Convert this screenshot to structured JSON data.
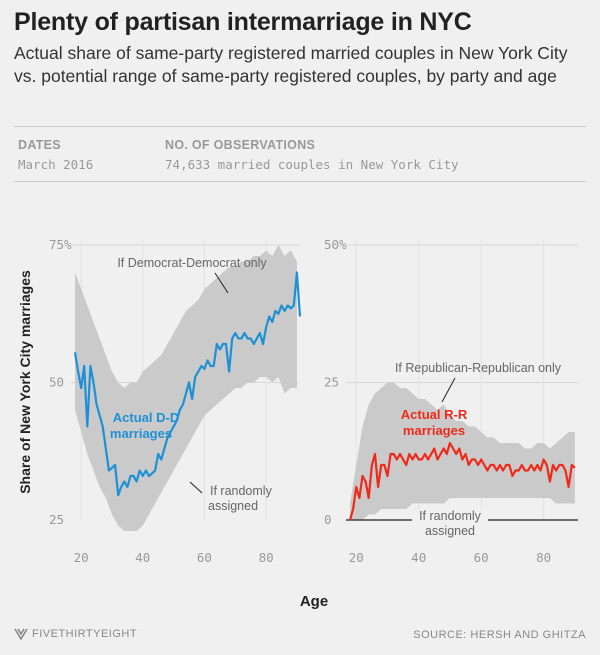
{
  "header": {
    "title": "Plenty of partisan intermarriage in NYC",
    "subtitle": "Actual share of same-party registered married couples in New York City vs. potential range of same-party registered couples, by party and age"
  },
  "meta": {
    "dates_label": "DATES",
    "dates_value": "March 2016",
    "obs_label": "NO. OF OBSERVATIONS",
    "obs_value": "74,633 married couples in New York City"
  },
  "footer": {
    "logo": "FIVETHIRTYEIGHT",
    "source": "SOURCE: HERSH AND GHITZA"
  },
  "colors": {
    "dem": "#1e90d6",
    "rep": "#ee2a1b",
    "band": "#cacaca",
    "background": "#f0f0f0"
  },
  "chart_data": [
    {
      "type": "line",
      "panel": "Democrats",
      "ylabel": "Share of New York City marriages",
      "xlabel": "Age",
      "xlim": [
        18,
        91
      ],
      "ylim": [
        25,
        75
      ],
      "xticks": [
        20,
        40,
        60,
        80
      ],
      "yticks": [
        25,
        50,
        75
      ],
      "ytick_labels": [
        "25",
        "50",
        "75%"
      ],
      "band": {
        "x": [
          18,
          20,
          22,
          24,
          26,
          28,
          30,
          32,
          34,
          36,
          38,
          40,
          42,
          44,
          46,
          48,
          50,
          52,
          54,
          56,
          58,
          60,
          62,
          64,
          66,
          68,
          70,
          72,
          74,
          76,
          78,
          80,
          82,
          84,
          86,
          88,
          90
        ],
        "upper": [
          70,
          67,
          64,
          61,
          58,
          55,
          52,
          50,
          49,
          50,
          50,
          52,
          53,
          54,
          55,
          57,
          59,
          61,
          63,
          64,
          65,
          67,
          68,
          69,
          70,
          71,
          71,
          72,
          72,
          73,
          73,
          74,
          73,
          75,
          73,
          74,
          72
        ],
        "lower": [
          45,
          41,
          37,
          34,
          31,
          29,
          26,
          24,
          23,
          23,
          23,
          24,
          26,
          28,
          30,
          32,
          34,
          36,
          38,
          40,
          42,
          44,
          45,
          46,
          47,
          48,
          49,
          49,
          50,
          50,
          51,
          51,
          50,
          51,
          48,
          49,
          49
        ]
      },
      "series": [
        {
          "name": "Actual D-D marriages",
          "x": [
            18,
            19,
            20,
            21,
            22,
            23,
            24,
            25,
            26,
            27,
            28,
            29,
            30,
            31,
            32,
            33,
            34,
            35,
            36,
            37,
            38,
            39,
            40,
            41,
            42,
            43,
            44,
            45,
            46,
            47,
            48,
            49,
            50,
            51,
            52,
            53,
            54,
            55,
            56,
            57,
            58,
            59,
            60,
            61,
            62,
            63,
            64,
            65,
            66,
            67,
            68,
            69,
            70,
            71,
            72,
            73,
            74,
            75,
            76,
            77,
            78,
            79,
            80,
            81,
            82,
            83,
            84,
            85,
            86,
            87,
            88,
            89,
            90,
            91
          ],
          "values": [
            55.5,
            52,
            49,
            53,
            42,
            53,
            50,
            46,
            44,
            42,
            38,
            34,
            34.5,
            35,
            29.5,
            31,
            32,
            31,
            33,
            33,
            32,
            34,
            33,
            34,
            33,
            33.5,
            34,
            37,
            36,
            38,
            40,
            41,
            42,
            43,
            45,
            46,
            48,
            50,
            47,
            51,
            52,
            53,
            52.5,
            54,
            53,
            53,
            57,
            56,
            57,
            57,
            52,
            58,
            59,
            58,
            58,
            59,
            58,
            58,
            57,
            58,
            59,
            57,
            60,
            62,
            61,
            63,
            62.5,
            64,
            63,
            64,
            63.5,
            64,
            70,
            62
          ]
        }
      ],
      "annotations": [
        "If Democrat-Democrat only",
        "If randomly assigned"
      ]
    },
    {
      "type": "line",
      "panel": "Republicans",
      "xlabel": "Age",
      "xlim": [
        18,
        91
      ],
      "ylim": [
        0,
        50
      ],
      "xticks": [
        20,
        40,
        60,
        80
      ],
      "yticks": [
        0,
        25,
        50
      ],
      "ytick_labels": [
        "0",
        "25",
        "50%"
      ],
      "band": {
        "x": [
          18,
          20,
          22,
          24,
          26,
          28,
          30,
          32,
          34,
          36,
          38,
          40,
          42,
          44,
          46,
          48,
          50,
          52,
          54,
          56,
          58,
          60,
          62,
          64,
          66,
          68,
          70,
          72,
          74,
          76,
          78,
          80,
          82,
          84,
          86,
          88,
          90
        ],
        "upper": [
          3,
          10,
          17,
          21,
          23,
          24,
          25,
          25,
          24,
          24,
          23,
          22,
          22,
          21,
          20,
          21,
          19,
          18,
          18,
          17,
          17,
          16,
          15,
          15,
          14,
          14,
          14,
          14,
          13,
          13,
          14,
          14,
          13,
          14,
          15,
          16,
          16
        ],
        "lower": [
          0,
          0,
          0,
          1,
          1,
          2,
          2,
          2,
          2,
          2,
          3,
          3,
          3,
          3,
          3,
          3,
          4,
          4,
          4,
          4,
          4,
          4,
          4,
          4,
          4,
          4,
          4,
          4,
          4,
          4,
          4,
          4,
          4,
          3,
          3,
          3,
          3
        ]
      },
      "series": [
        {
          "name": "Actual R-R marriages",
          "x": [
            18,
            19,
            20,
            21,
            22,
            23,
            24,
            25,
            26,
            27,
            28,
            29,
            30,
            31,
            32,
            33,
            34,
            35,
            36,
            37,
            38,
            39,
            40,
            41,
            42,
            43,
            44,
            45,
            46,
            47,
            48,
            49,
            50,
            51,
            52,
            53,
            54,
            55,
            56,
            57,
            58,
            59,
            60,
            61,
            62,
            63,
            64,
            65,
            66,
            67,
            68,
            69,
            70,
            71,
            72,
            73,
            74,
            75,
            76,
            77,
            78,
            79,
            80,
            81,
            82,
            83,
            84,
            85,
            86,
            87,
            88,
            89,
            90
          ],
          "values": [
            0,
            2,
            6,
            4,
            8,
            7,
            4,
            10,
            12,
            6,
            10,
            10,
            8,
            12,
            12,
            11,
            12,
            11,
            10,
            12,
            11,
            12,
            11,
            11,
            12,
            11,
            12,
            13,
            11,
            12,
            13,
            12,
            14,
            13,
            12,
            13,
            11,
            12,
            10,
            11,
            11,
            10,
            11,
            10,
            9,
            10,
            10,
            9,
            10,
            9,
            10,
            10,
            8,
            9,
            9,
            10,
            9,
            9,
            10,
            9,
            10,
            9,
            11,
            10,
            7,
            10,
            9,
            10,
            10,
            9,
            6,
            10,
            9.5
          ]
        }
      ],
      "annotations": [
        "If Republican-Republican only",
        "If randomly assigned"
      ]
    }
  ]
}
